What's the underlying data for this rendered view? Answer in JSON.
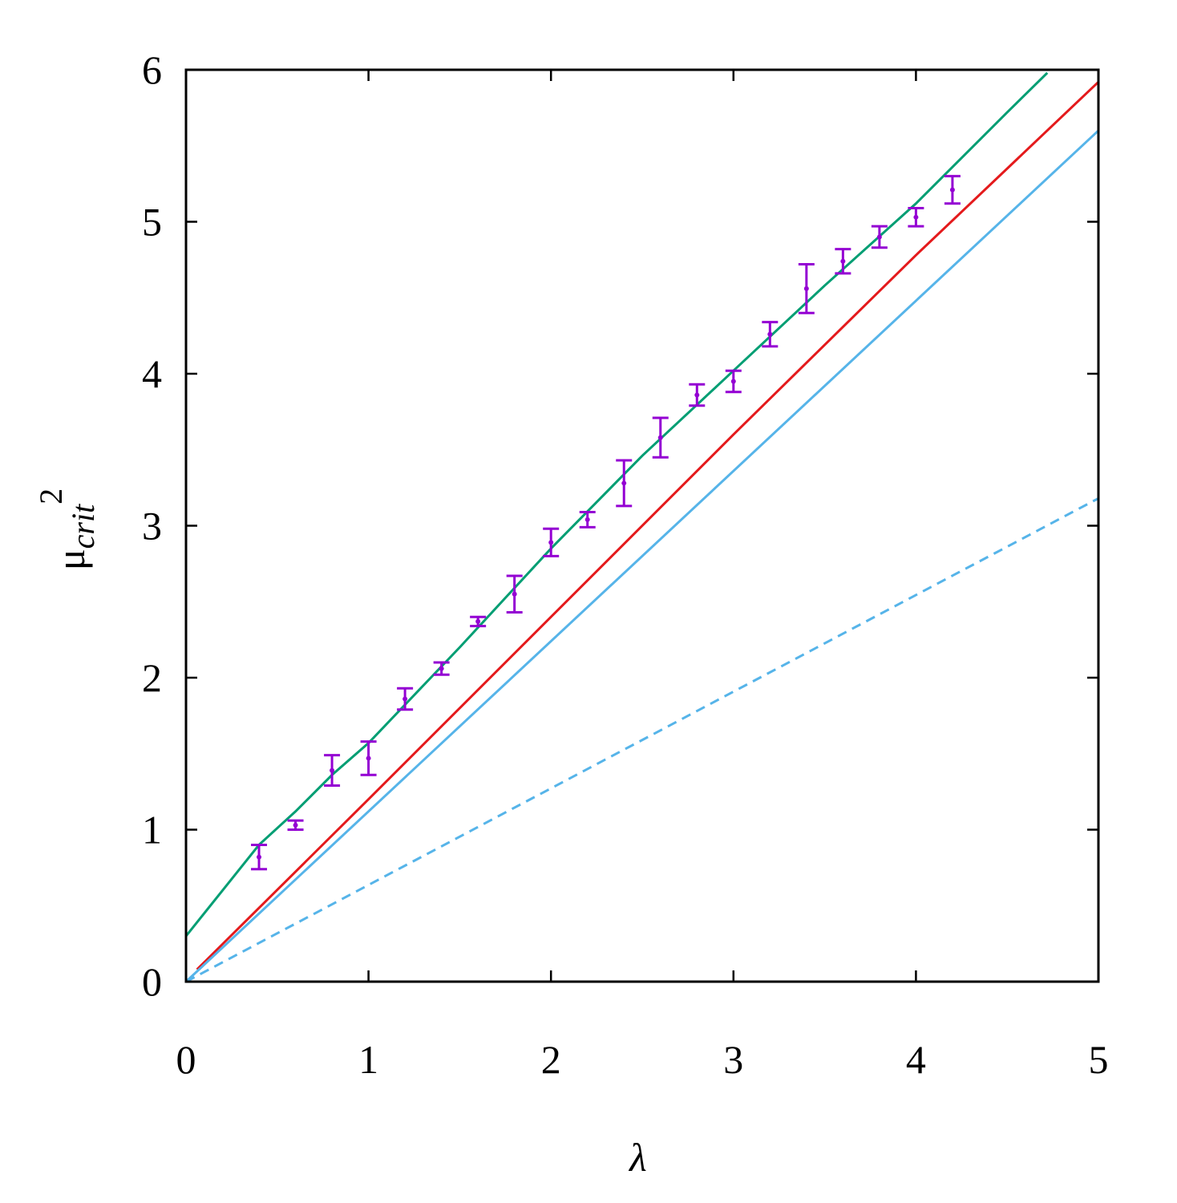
{
  "chart_data": {
    "type": "line",
    "x_label": "λ",
    "y_label": {
      "base": "μ",
      "subscript": "crit",
      "superscript": "2"
    },
    "xlim": [
      0,
      5
    ],
    "ylim": [
      0,
      6
    ],
    "xticks": [
      0,
      1,
      2,
      3,
      4,
      5
    ],
    "yticks": [
      0,
      1,
      2,
      3,
      4,
      5,
      6
    ],
    "series": [
      {
        "type": "line",
        "color": "#009e73",
        "dash": false,
        "x": [
          0,
          0.2,
          0.4,
          0.6,
          0.8,
          1,
          1.5,
          2,
          2.5,
          3,
          3.5,
          4,
          4.5,
          4.72
        ],
        "values": [
          0.3,
          0.6,
          0.9,
          1.12,
          1.36,
          1.57,
          2.2,
          2.85,
          3.46,
          4.02,
          4.58,
          5.12,
          5.72,
          5.98
        ]
      },
      {
        "type": "line",
        "color": "#e41a1c",
        "dash": false,
        "x": [
          0.06,
          1,
          2,
          3,
          4,
          5
        ],
        "values": [
          0.08,
          1.2,
          2.4,
          3.6,
          4.78,
          5.92
        ]
      },
      {
        "type": "line",
        "color": "#56b4e9",
        "dash": false,
        "x": [
          0,
          5
        ],
        "values": [
          0,
          5.6
        ]
      },
      {
        "type": "line",
        "color": "#56b4e9",
        "dash": true,
        "x": [
          0,
          5
        ],
        "values": [
          0,
          3.18
        ]
      },
      {
        "type": "errorbar",
        "color": "#9400d3",
        "x": [
          0.4,
          0.6,
          0.8,
          1.0,
          1.2,
          1.4,
          1.6,
          1.8,
          2.0,
          2.2,
          2.4,
          2.6,
          2.8,
          3.0,
          3.2,
          3.4,
          3.6,
          3.8,
          4.0,
          4.2
        ],
        "values": [
          0.82,
          1.03,
          1.39,
          1.47,
          1.86,
          2.06,
          2.37,
          2.55,
          2.89,
          3.04,
          3.28,
          3.58,
          3.86,
          3.95,
          4.26,
          4.56,
          4.74,
          4.9,
          5.03,
          5.21
        ],
        "errors": [
          0.08,
          0.03,
          0.1,
          0.11,
          0.07,
          0.04,
          0.03,
          0.12,
          0.09,
          0.05,
          0.15,
          0.13,
          0.07,
          0.07,
          0.08,
          0.16,
          0.08,
          0.07,
          0.06,
          0.09
        ]
      }
    ]
  }
}
